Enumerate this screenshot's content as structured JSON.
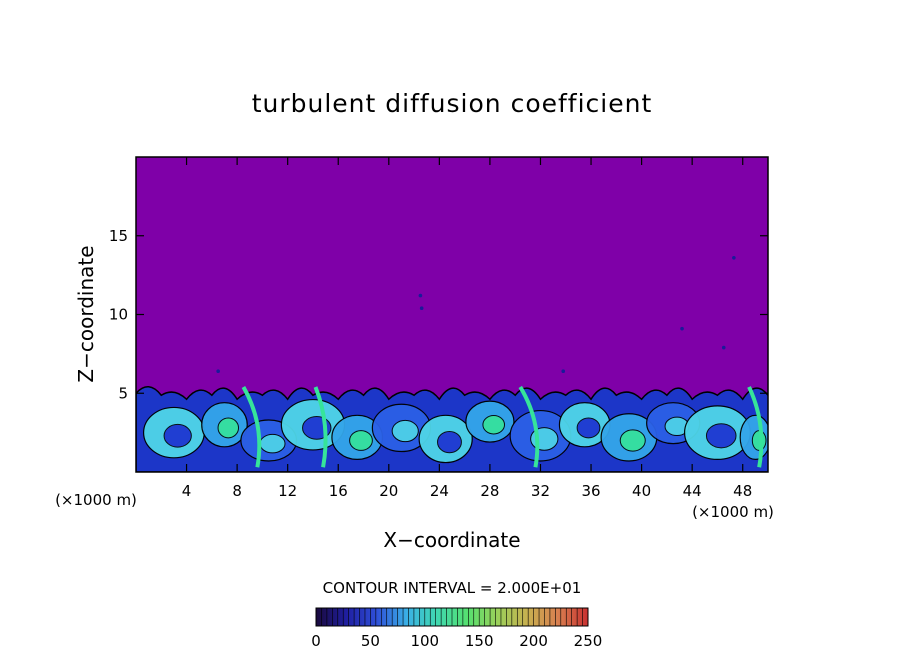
{
  "chart_data": {
    "type": "heatmap",
    "title": "turbulent diffusion coefficient",
    "xlabel": "X−coordinate",
    "ylabel": "Z−coordinate",
    "x_unit_left": "(×1000 m)",
    "x_unit_right": "(×1000 m)",
    "xlim": [
      0,
      50
    ],
    "ylim": [
      0,
      20
    ],
    "x_ticks": [
      4,
      8,
      12,
      16,
      20,
      24,
      28,
      32,
      36,
      40,
      44,
      48
    ],
    "y_ticks": [
      5,
      10,
      15
    ],
    "contour_interval_label": "CONTOUR INTERVAL = 2.000E+01",
    "colorbar": {
      "min": 0,
      "max": 250,
      "ticks": [
        0,
        50,
        100,
        150,
        200,
        250
      ],
      "colors": [
        "#1a0a3c",
        "#1f1ea0",
        "#2f4fd8",
        "#3ab0e6",
        "#40d8b0",
        "#55e070",
        "#9ad05a",
        "#c8b050",
        "#d88050",
        "#c83030"
      ]
    },
    "field": {
      "background_value": 0,
      "background_color": "#7f00a8",
      "layer_top_z_approx": 5,
      "cell_colors": [
        "#1c2fd0",
        "#2b60e6",
        "#34a6ea",
        "#4fd6e8",
        "#36e49a"
      ]
    }
  }
}
